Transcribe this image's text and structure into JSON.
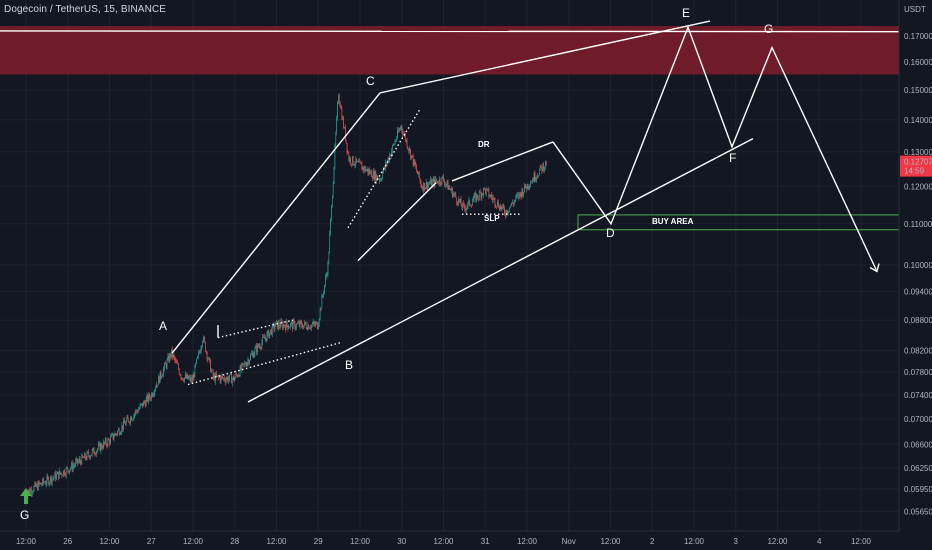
{
  "header": {
    "title": "Dogecoin / TetherUS, 15, BINANCE"
  },
  "axis": {
    "currency": "USDT"
  },
  "price_badge": {
    "price": "0.12707",
    "countdown": "14:59",
    "color": "#f23645"
  },
  "colors": {
    "up": "#26a69a",
    "down": "#ef5350",
    "resistance_zone": "#801c2c",
    "buy_zone_border": "#4caf50"
  },
  "chart_data": {
    "type": "candlestick",
    "symbol": "Dogecoin / TetherUS",
    "timeframe": "15",
    "exchange": "BINANCE",
    "y_scale": "log",
    "ylim": [
      0.0553,
      0.179
    ],
    "y_ticks": [
      "0.17000",
      "0.16000",
      "0.15000",
      "0.14000",
      "0.13000",
      "0.12000",
      "0.11000",
      "0.10000",
      "0.09400",
      "0.08800",
      "0.08200",
      "0.07800",
      "0.07400",
      "0.07000",
      "0.06600",
      "0.06250",
      "0.05950",
      "0.05650"
    ],
    "x_tick_labels": [
      "12:00",
      "26",
      "12:00",
      "27",
      "12:00",
      "28",
      "12:00",
      "29",
      "12:00",
      "30",
      "12:00",
      "31",
      "12:00",
      "Nov",
      "12:00",
      "2",
      "12:00",
      "3",
      "12:00",
      "4",
      "12:00"
    ],
    "price_path": [
      [
        "25 12:00",
        0.059
      ],
      [
        "26 00:00",
        0.0622
      ],
      [
        "26 12:00",
        0.0665
      ],
      [
        "27 00:00",
        0.0738
      ],
      [
        "27 06:00",
        0.0815
      ],
      [
        "27 09:00",
        0.0772
      ],
      [
        "27 12:00",
        0.0765
      ],
      [
        "27 15:00",
        0.0845
      ],
      [
        "27 18:00",
        0.077
      ],
      [
        "28 00:00",
        0.0768
      ],
      [
        "28 06:00",
        0.082
      ],
      [
        "28 12:00",
        0.087
      ],
      [
        "29 00:00",
        0.087
      ],
      [
        "29 03:00",
        0.1
      ],
      [
        "29 06:00",
        0.149
      ],
      [
        "29 09:00",
        0.128
      ],
      [
        "29 18:00",
        0.122
      ],
      [
        "30 00:00",
        0.138
      ],
      [
        "30 06:00",
        0.12
      ],
      [
        "30 12:00",
        0.122
      ],
      [
        "30 18:00",
        0.114
      ],
      [
        "31 00:00",
        0.119
      ],
      [
        "31 06:00",
        0.113
      ],
      [
        "31 12:00",
        0.12
      ],
      [
        "31 18:00",
        0.127
      ]
    ],
    "zones": [
      {
        "name": "resistance",
        "from": 0.1555,
        "to": 0.174
      },
      {
        "name": "BUY AREA",
        "from": 0.1085,
        "to": 0.1123
      }
    ],
    "pattern_points": [
      "G",
      "A",
      "B",
      "C",
      "D",
      "E",
      "F",
      "G"
    ],
    "annotations": [
      "DR",
      "SLP",
      "BUY AREA"
    ],
    "grid": true
  }
}
